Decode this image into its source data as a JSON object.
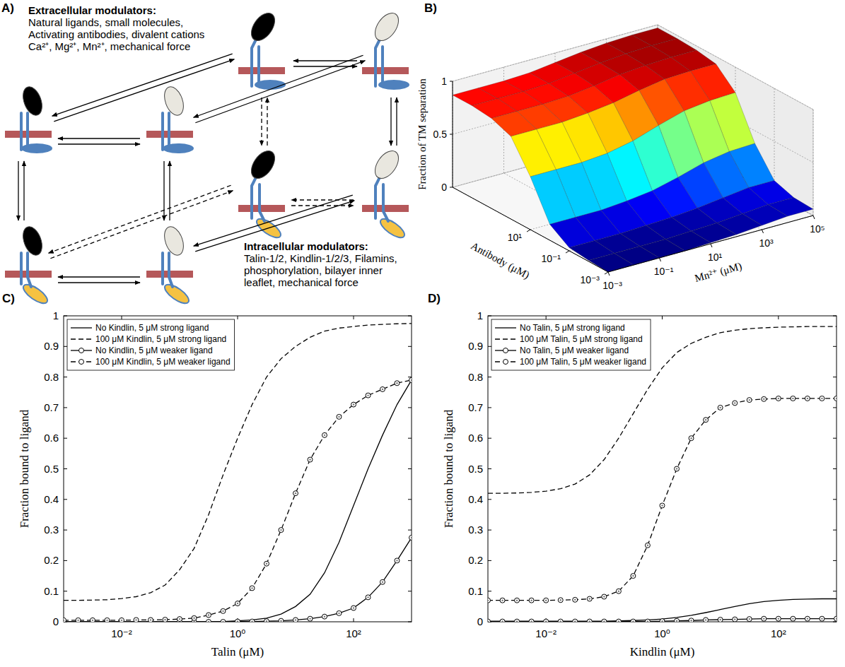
{
  "diagram": {
    "panel": "A)",
    "extracellular": {
      "title": "Extracellular modulators:",
      "text": "Natural ligands, small molecules, Activating antibodies, divalent cations Ca²⁺, Mg²⁺, Mn²⁺, mechanical force"
    },
    "intracellular": {
      "title": "Intracellular modulators:",
      "text": "Talin-1/2, Kindlin-1/2/3, Filamins, phosphorylation, bilayer inner leaflet, mechanical force"
    }
  },
  "chart_data": [
    {
      "type": "surface",
      "panel": "B)",
      "xlabel": "Mn²⁺ (μM)",
      "ylabel": "Antibody (μM)",
      "zlabel": "Fraction of TM separation",
      "log": true,
      "grid": true,
      "x": [
        0.001,
        0.01,
        0.1,
        1,
        10,
        100,
        1000,
        10000,
        100000
      ],
      "y": [
        0.001,
        0.01,
        0.1,
        1,
        10,
        100,
        1000,
        10000,
        100000
      ],
      "values": [
        [
          0,
          0,
          0,
          0,
          0.01,
          0.02,
          0.04,
          0.06,
          0.06
        ],
        [
          0.01,
          0.01,
          0.01,
          0.01,
          0.02,
          0.03,
          0.05,
          0.07,
          0.07
        ],
        [
          0.03,
          0.03,
          0.03,
          0.04,
          0.05,
          0.07,
          0.1,
          0.13,
          0.13
        ],
        [
          0.15,
          0.15,
          0.15,
          0.17,
          0.2,
          0.26,
          0.33,
          0.37,
          0.38
        ],
        [
          0.5,
          0.5,
          0.5,
          0.52,
          0.57,
          0.65,
          0.72,
          0.75,
          0.76
        ],
        [
          0.78,
          0.78,
          0.78,
          0.8,
          0.83,
          0.88,
          0.92,
          0.93,
          0.93
        ],
        [
          0.85,
          0.85,
          0.85,
          0.86,
          0.89,
          0.93,
          0.95,
          0.96,
          0.96
        ],
        [
          0.87,
          0.87,
          0.87,
          0.88,
          0.91,
          0.94,
          0.96,
          0.97,
          0.97
        ],
        [
          0.87,
          0.87,
          0.87,
          0.88,
          0.91,
          0.94,
          0.96,
          0.97,
          0.97
        ]
      ],
      "xlim": [
        0.001,
        100000
      ],
      "ylim": [
        0.001,
        100000
      ],
      "zlim": [
        0,
        1
      ],
      "xticks": [
        {
          "value": 0.001,
          "label": "10⁻³"
        },
        {
          "value": 0.1,
          "label": "10⁻¹"
        },
        {
          "value": 10,
          "label": "10¹"
        },
        {
          "value": 1000,
          "label": "10³"
        },
        {
          "value": 100000,
          "label": "10⁵"
        }
      ],
      "yticks": [
        {
          "value": 0.001,
          "label": "10⁻³"
        },
        {
          "value": 0.1,
          "label": "10⁻¹"
        },
        {
          "value": 10,
          "label": "10¹"
        }
      ],
      "zticks": [
        0,
        0.5,
        1
      ]
    },
    {
      "type": "line",
      "panel": "C)",
      "xlabel": "Talin (μM)",
      "ylabel": "Fraction bound to ligand",
      "log": "x",
      "legend": "upper left",
      "grid": false,
      "x": [
        0.001,
        0.00178,
        0.00316,
        0.00562,
        0.01,
        0.0178,
        0.0316,
        0.0562,
        0.1,
        0.178,
        0.316,
        0.562,
        1,
        1.78,
        3.16,
        5.62,
        10,
        17.8,
        31.6,
        56.2,
        100,
        178,
        316,
        562,
        1000
      ],
      "xlim": [
        0.001,
        1000
      ],
      "ylim": [
        0,
        1
      ],
      "xticks": [
        {
          "value": 0.01,
          "label": "10⁻²"
        },
        {
          "value": 1,
          "label": "10⁰"
        },
        {
          "value": 100,
          "label": "10²"
        }
      ],
      "yticks": [
        0,
        0.1,
        0.2,
        0.3,
        0.4,
        0.5,
        0.6,
        0.7,
        0.8,
        0.9,
        1
      ],
      "series": [
        {
          "name": "No Kindlin, 5 μM strong ligand",
          "color": "#000000",
          "line_style": "solid",
          "marker": "none",
          "values": [
            0,
            0,
            0,
            0,
            0,
            0,
            0,
            0,
            0,
            0,
            0,
            0.001,
            0.003,
            0.006,
            0.012,
            0.025,
            0.05,
            0.09,
            0.16,
            0.26,
            0.38,
            0.5,
            0.61,
            0.71,
            0.79
          ]
        },
        {
          "name": "100 μM Kindlin, 5 μM strong ligand",
          "color": "#000000",
          "line_style": "dashed",
          "marker": "none",
          "values": [
            0.07,
            0.07,
            0.071,
            0.072,
            0.076,
            0.082,
            0.095,
            0.12,
            0.17,
            0.24,
            0.35,
            0.48,
            0.6,
            0.71,
            0.8,
            0.86,
            0.9,
            0.93,
            0.95,
            0.96,
            0.965,
            0.97,
            0.972,
            0.974,
            0.975
          ]
        },
        {
          "name": "No Kindlin, 5 μM weaker ligand",
          "color": "#000000",
          "line_style": "solid",
          "marker": "circle",
          "values": [
            0,
            0,
            0,
            0,
            0,
            0,
            0,
            0,
            0,
            0,
            0,
            0,
            0.001,
            0.001,
            0.002,
            0.003,
            0.006,
            0.01,
            0.017,
            0.028,
            0.045,
            0.08,
            0.13,
            0.2,
            0.275
          ]
        },
        {
          "name": "100 μM Kindlin, 5 μM weaker ligand",
          "color": "#000000",
          "line_style": "dashed",
          "marker": "circle",
          "values": [
            0.005,
            0.005,
            0.005,
            0.005,
            0.005,
            0.006,
            0.006,
            0.007,
            0.009,
            0.012,
            0.022,
            0.035,
            0.06,
            0.11,
            0.19,
            0.3,
            0.42,
            0.53,
            0.61,
            0.67,
            0.71,
            0.74,
            0.76,
            0.78,
            0.79
          ]
        }
      ]
    },
    {
      "type": "line",
      "panel": "D)",
      "xlabel": "Kindlin (μM)",
      "ylabel": "Fraction bound to ligand",
      "log": "x",
      "legend": "upper left",
      "grid": false,
      "x": [
        0.001,
        0.00178,
        0.00316,
        0.00562,
        0.01,
        0.0178,
        0.0316,
        0.0562,
        0.1,
        0.178,
        0.316,
        0.562,
        1,
        1.78,
        3.16,
        5.62,
        10,
        17.8,
        31.6,
        56.2,
        100,
        178,
        316,
        562,
        1000
      ],
      "xlim": [
        0.001,
        1000
      ],
      "ylim": [
        0,
        1
      ],
      "xticks": [
        {
          "value": 0.01,
          "label": "10⁻²"
        },
        {
          "value": 1,
          "label": "10⁰"
        },
        {
          "value": 100,
          "label": "10²"
        }
      ],
      "yticks": [
        0,
        0.1,
        0.2,
        0.3,
        0.4,
        0.5,
        0.6,
        0.7,
        0.8,
        0.9,
        1
      ],
      "series": [
        {
          "name": "No Talin, 5 μM strong ligand",
          "color": "#000000",
          "line_style": "solid",
          "marker": "none",
          "values": [
            0.002,
            0.002,
            0.002,
            0.002,
            0.002,
            0.002,
            0.002,
            0.002,
            0.002,
            0.003,
            0.004,
            0.006,
            0.009,
            0.014,
            0.021,
            0.03,
            0.04,
            0.05,
            0.059,
            0.066,
            0.07,
            0.073,
            0.074,
            0.075,
            0.075
          ]
        },
        {
          "name": "100 μM Talin, 5 μM strong ligand",
          "color": "#000000",
          "line_style": "dashed",
          "marker": "none",
          "values": [
            0.42,
            0.42,
            0.421,
            0.423,
            0.427,
            0.435,
            0.45,
            0.48,
            0.53,
            0.6,
            0.68,
            0.76,
            0.83,
            0.88,
            0.91,
            0.93,
            0.945,
            0.953,
            0.958,
            0.961,
            0.963,
            0.964,
            0.965,
            0.965,
            0.965
          ]
        },
        {
          "name": "No Talin, 5 μM weaker ligand",
          "color": "#000000",
          "line_style": "solid",
          "marker": "circle",
          "values": [
            0.001,
            0.001,
            0.001,
            0.001,
            0.001,
            0.001,
            0.001,
            0.001,
            0.001,
            0.001,
            0.001,
            0.001,
            0.002,
            0.003,
            0.004,
            0.006,
            0.007,
            0.008,
            0.009,
            0.01,
            0.01,
            0.01,
            0.01,
            0.01,
            0.01
          ]
        },
        {
          "name": "100 μM Talin, 5 μM weaker ligand",
          "color": "#000000",
          "line_style": "dashed",
          "marker": "circle",
          "values": [
            0.07,
            0.07,
            0.07,
            0.07,
            0.07,
            0.071,
            0.072,
            0.075,
            0.082,
            0.1,
            0.15,
            0.25,
            0.38,
            0.5,
            0.6,
            0.66,
            0.7,
            0.715,
            0.725,
            0.728,
            0.73,
            0.73,
            0.73,
            0.73,
            0.73
          ]
        }
      ]
    }
  ]
}
